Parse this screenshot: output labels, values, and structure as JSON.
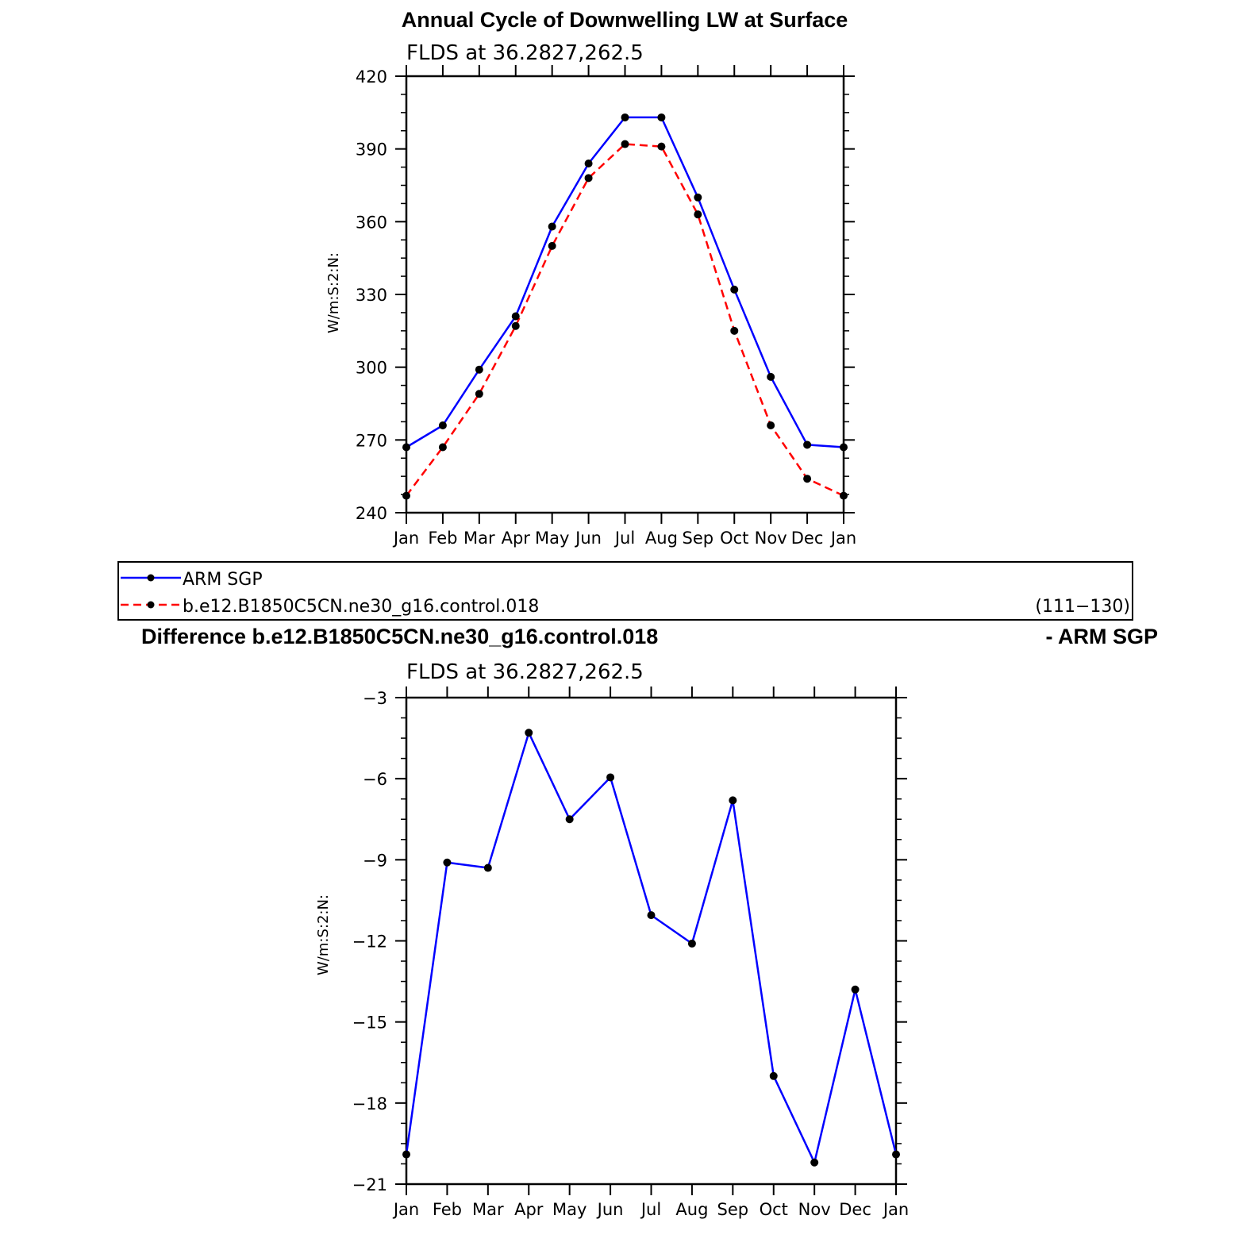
{
  "chart_data": [
    {
      "type": "line",
      "title": "Annual Cycle of Downwelling LW at Surface",
      "subtitle": "FLDS at 36.2827,262.5",
      "ylabel": "W/m:S:2:N:",
      "categories": [
        "Jan",
        "Feb",
        "Mar",
        "Apr",
        "May",
        "Jun",
        "Jul",
        "Aug",
        "Sep",
        "Oct",
        "Nov",
        "Dec",
        "Jan"
      ],
      "ylim": [
        240,
        420
      ],
      "yticks": [
        240,
        270,
        300,
        330,
        360,
        390,
        420
      ],
      "series": [
        {
          "name": "ARM SGP",
          "color": "#0000ff",
          "dash": "solid",
          "values": [
            267,
            276,
            299,
            321,
            358,
            384,
            403,
            403,
            370,
            332,
            296,
            268,
            267
          ]
        },
        {
          "name": "b.e12.B1850C5CN.ne30_g16.control.018",
          "color": "#ff0000",
          "dash": "dashed",
          "values": [
            247,
            267,
            289,
            317,
            350,
            378,
            392,
            391,
            363,
            315,
            276,
            254,
            247
          ]
        }
      ],
      "legend": {
        "placement": "bottom",
        "note": "(111−130)"
      }
    },
    {
      "type": "line",
      "title": "Difference b.e12.B1850C5CN.ne30_g16.control.018",
      "title_right": "- ARM SGP",
      "subtitle": "FLDS at 36.2827,262.5",
      "ylabel": "W/m:S:2:N:",
      "categories": [
        "Jan",
        "Feb",
        "Mar",
        "Apr",
        "May",
        "Jun",
        "Jul",
        "Aug",
        "Sep",
        "Oct",
        "Nov",
        "Dec",
        "Jan"
      ],
      "ylim": [
        -21,
        -3
      ],
      "yticks": [
        -21,
        -18,
        -15,
        -12,
        -9,
        -6,
        -3
      ],
      "series": [
        {
          "color": "#0000ff",
          "dash": "solid",
          "values": [
            -19.9,
            -9.1,
            -9.3,
            -4.3,
            -7.5,
            -5.95,
            -11.05,
            -12.1,
            -6.8,
            -17.0,
            -20.2,
            -13.8,
            -19.9
          ]
        }
      ]
    }
  ]
}
